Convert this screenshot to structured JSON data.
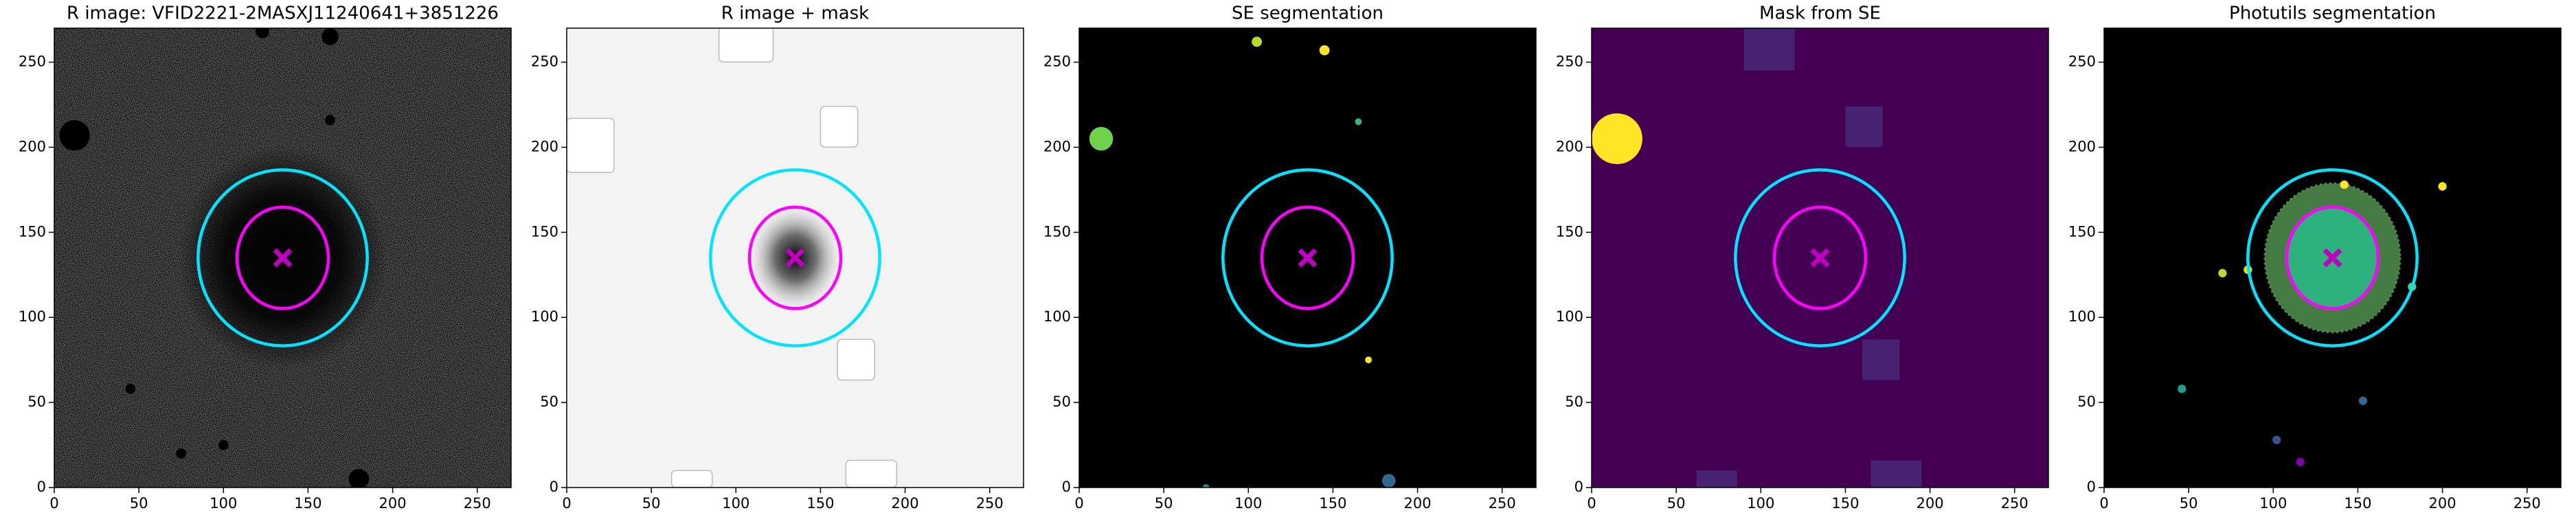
{
  "chart_data": [
    {
      "type": "image",
      "title": "R image: VFID2221-2MASXJ11240641+3851226",
      "xlim": [
        0,
        270
      ],
      "ylim": [
        0,
        270
      ],
      "xticks": [
        0,
        50,
        100,
        150,
        200,
        250
      ],
      "yticks": [
        0,
        50,
        100,
        150,
        200,
        250
      ],
      "ellipses": [
        {
          "color": "#00e5ff",
          "cx": 135,
          "cy": 135,
          "rx": 50,
          "ry": 52
        },
        {
          "color": "#ff00ff",
          "cx": 135,
          "cy": 135,
          "rx": 27,
          "ry": 30
        }
      ],
      "marker": {
        "x": 135,
        "y": 135,
        "color": "#c000c0"
      }
    },
    {
      "type": "image",
      "title": "R image + mask",
      "xlim": [
        0,
        270
      ],
      "ylim": [
        0,
        270
      ],
      "xticks": [
        0,
        50,
        100,
        150,
        200,
        250
      ],
      "yticks": [
        0,
        50,
        100,
        150,
        200,
        250
      ],
      "ellipses": [
        {
          "color": "#00e5ff",
          "cx": 135,
          "cy": 135,
          "rx": 50,
          "ry": 52
        },
        {
          "color": "#ff00ff",
          "cx": 135,
          "cy": 135,
          "rx": 27,
          "ry": 30
        }
      ],
      "marker": {
        "x": 135,
        "y": 135,
        "color": "#c000c0"
      }
    },
    {
      "type": "image",
      "title": "SE segmentation",
      "xlim": [
        0,
        270
      ],
      "ylim": [
        0,
        270
      ],
      "xticks": [
        0,
        50,
        100,
        150,
        200,
        250
      ],
      "yticks": [
        0,
        50,
        100,
        150,
        200,
        250
      ],
      "ellipses": [
        {
          "color": "#00e5ff",
          "cx": 135,
          "cy": 135,
          "rx": 50,
          "ry": 52
        },
        {
          "color": "#ff00ff",
          "cx": 135,
          "cy": 135,
          "rx": 27,
          "ry": 30
        }
      ],
      "marker": {
        "x": 135,
        "y": 135,
        "color": "#c000c0"
      }
    },
    {
      "type": "image",
      "title": "Mask from SE",
      "xlim": [
        0,
        270
      ],
      "ylim": [
        0,
        270
      ],
      "xticks": [
        0,
        50,
        100,
        150,
        200,
        250
      ],
      "yticks": [
        0,
        50,
        100,
        150,
        200,
        250
      ],
      "ellipses": [
        {
          "color": "#00e5ff",
          "cx": 135,
          "cy": 135,
          "rx": 50,
          "ry": 52
        },
        {
          "color": "#ff00ff",
          "cx": 135,
          "cy": 135,
          "rx": 27,
          "ry": 30
        }
      ],
      "marker": {
        "x": 135,
        "y": 135,
        "color": "#c000c0"
      }
    },
    {
      "type": "image",
      "title": "Photutils segmentation",
      "xlim": [
        0,
        270
      ],
      "ylim": [
        0,
        270
      ],
      "xticks": [
        0,
        50,
        100,
        150,
        200,
        250
      ],
      "yticks": [
        0,
        50,
        100,
        150,
        200,
        250
      ],
      "ellipses": [
        {
          "color": "#00e5ff",
          "cx": 135,
          "cy": 135,
          "rx": 50,
          "ry": 52
        },
        {
          "color": "#ff00ff",
          "cx": 135,
          "cy": 135,
          "rx": 27,
          "ry": 30
        }
      ],
      "marker": {
        "x": 135,
        "y": 135,
        "color": "#c000c0"
      }
    }
  ]
}
